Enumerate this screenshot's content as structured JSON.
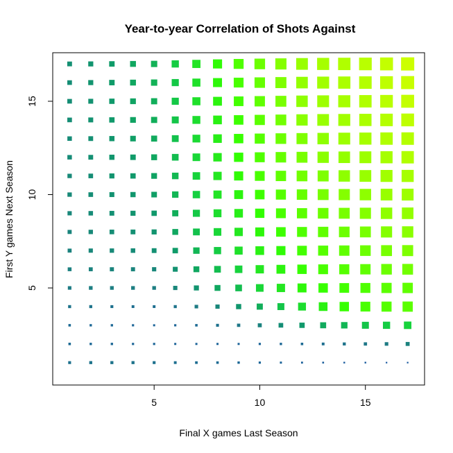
{
  "chart_data": {
    "type": "scatter",
    "title": "Year-to-year Correlation of Shots Against",
    "xlabel": "Final X games Last Season",
    "ylabel": "First Y games Next Season",
    "xlim": [
      0.2,
      17.8
    ],
    "ylim": [
      -0.2,
      17.6
    ],
    "x_ticks": [
      5,
      10,
      15
    ],
    "y_ticks": [
      5,
      10,
      15
    ],
    "grid": false,
    "x": [
      1,
      2,
      3,
      4,
      5,
      6,
      7,
      8,
      9,
      10,
      11,
      12,
      13,
      14,
      15,
      16,
      17
    ],
    "y": [
      1,
      2,
      3,
      4,
      5,
      6,
      7,
      8,
      9,
      10,
      11,
      12,
      13,
      14,
      15,
      16,
      17
    ],
    "marker": "square",
    "encoding": "marker size and color both scale with correlation; low = blue-teal, mid = green, high = yellow-green",
    "color_scale": [
      "#1a5aa0",
      "#1f7a85",
      "#0f9a6a",
      "#15d040",
      "#33ff00",
      "#88ff00",
      "#ccff00"
    ],
    "correlation_matrix": [
      [
        0.12,
        0.13,
        0.13,
        0.13,
        0.12,
        0.11,
        0.1,
        0.09,
        0.08,
        0.07,
        0.06,
        0.05,
        0.04,
        0.03,
        0.03,
        0.02,
        0.02
      ],
      [
        0.09,
        0.08,
        0.08,
        0.07,
        0.07,
        0.06,
        0.06,
        0.06,
        0.06,
        0.07,
        0.08,
        0.09,
        0.11,
        0.13,
        0.15,
        0.17,
        0.2
      ],
      [
        0.09,
        0.08,
        0.08,
        0.07,
        0.06,
        0.07,
        0.09,
        0.12,
        0.15,
        0.2,
        0.25,
        0.3,
        0.35,
        0.38,
        0.42,
        0.44,
        0.46
      ],
      [
        0.13,
        0.13,
        0.12,
        0.11,
        0.11,
        0.13,
        0.17,
        0.22,
        0.29,
        0.36,
        0.42,
        0.49,
        0.55,
        0.6,
        0.63,
        0.65,
        0.66
      ],
      [
        0.17,
        0.18,
        0.18,
        0.18,
        0.18,
        0.22,
        0.28,
        0.34,
        0.4,
        0.47,
        0.52,
        0.57,
        0.6,
        0.62,
        0.64,
        0.66,
        0.67
      ],
      [
        0.19,
        0.2,
        0.21,
        0.21,
        0.22,
        0.27,
        0.34,
        0.4,
        0.46,
        0.52,
        0.56,
        0.6,
        0.63,
        0.65,
        0.67,
        0.69,
        0.7
      ],
      [
        0.2,
        0.22,
        0.23,
        0.24,
        0.26,
        0.31,
        0.38,
        0.44,
        0.5,
        0.55,
        0.58,
        0.62,
        0.65,
        0.67,
        0.69,
        0.71,
        0.72
      ],
      [
        0.21,
        0.23,
        0.25,
        0.26,
        0.28,
        0.34,
        0.41,
        0.47,
        0.52,
        0.57,
        0.61,
        0.64,
        0.67,
        0.69,
        0.71,
        0.73,
        0.74
      ],
      [
        0.22,
        0.24,
        0.26,
        0.28,
        0.3,
        0.36,
        0.43,
        0.49,
        0.54,
        0.59,
        0.63,
        0.66,
        0.69,
        0.71,
        0.73,
        0.75,
        0.76
      ],
      [
        0.23,
        0.25,
        0.27,
        0.29,
        0.32,
        0.38,
        0.45,
        0.51,
        0.56,
        0.61,
        0.65,
        0.68,
        0.71,
        0.73,
        0.75,
        0.77,
        0.78
      ],
      [
        0.23,
        0.25,
        0.28,
        0.3,
        0.33,
        0.39,
        0.46,
        0.52,
        0.58,
        0.63,
        0.67,
        0.7,
        0.72,
        0.75,
        0.77,
        0.79,
        0.8
      ],
      [
        0.24,
        0.26,
        0.29,
        0.31,
        0.34,
        0.4,
        0.47,
        0.53,
        0.59,
        0.64,
        0.68,
        0.71,
        0.74,
        0.76,
        0.78,
        0.8,
        0.82
      ],
      [
        0.24,
        0.26,
        0.29,
        0.32,
        0.35,
        0.41,
        0.48,
        0.54,
        0.6,
        0.65,
        0.69,
        0.72,
        0.75,
        0.78,
        0.8,
        0.82,
        0.83
      ],
      [
        0.25,
        0.27,
        0.3,
        0.33,
        0.36,
        0.42,
        0.49,
        0.55,
        0.61,
        0.66,
        0.7,
        0.74,
        0.77,
        0.79,
        0.81,
        0.83,
        0.85
      ],
      [
        0.25,
        0.27,
        0.3,
        0.33,
        0.36,
        0.43,
        0.5,
        0.56,
        0.62,
        0.67,
        0.71,
        0.75,
        0.78,
        0.8,
        0.82,
        0.84,
        0.86
      ],
      [
        0.25,
        0.28,
        0.31,
        0.34,
        0.37,
        0.43,
        0.5,
        0.57,
        0.63,
        0.68,
        0.72,
        0.76,
        0.79,
        0.81,
        0.83,
        0.85,
        0.87
      ],
      [
        0.26,
        0.28,
        0.31,
        0.34,
        0.37,
        0.44,
        0.51,
        0.58,
        0.64,
        0.69,
        0.73,
        0.77,
        0.8,
        0.82,
        0.84,
        0.86,
        0.88
      ]
    ]
  }
}
